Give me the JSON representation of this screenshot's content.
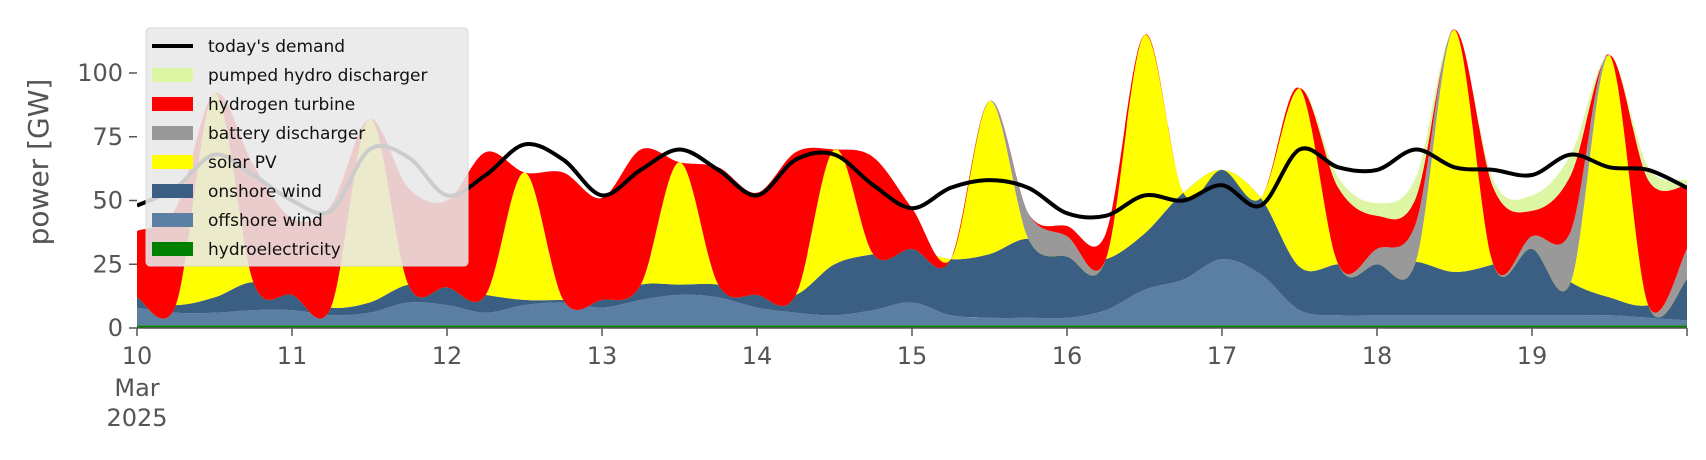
{
  "chart_data": {
    "type": "area",
    "title": "",
    "xlabel": "",
    "ylabel": "power [GW]",
    "ylim": [
      0,
      120
    ],
    "xlim": [
      "2025-03-10",
      "2025-03-20"
    ],
    "y_ticks": [
      0,
      25,
      50,
      75,
      100
    ],
    "x_tick_labels": [
      "10",
      "11",
      "12",
      "13",
      "14",
      "15",
      "16",
      "17",
      "18",
      "19"
    ],
    "x_date_label": {
      "month": "Mar",
      "year": "2025"
    },
    "grid": false,
    "legend_position": "top-left",
    "x": [
      "2025-03-10T00:00",
      "2025-03-10T06:00",
      "2025-03-10T12:00",
      "2025-03-10T18:00",
      "2025-03-11T00:00",
      "2025-03-11T06:00",
      "2025-03-11T12:00",
      "2025-03-11T18:00",
      "2025-03-12T00:00",
      "2025-03-12T06:00",
      "2025-03-12T12:00",
      "2025-03-12T18:00",
      "2025-03-13T00:00",
      "2025-03-13T06:00",
      "2025-03-13T12:00",
      "2025-03-13T18:00",
      "2025-03-14T00:00",
      "2025-03-14T06:00",
      "2025-03-14T12:00",
      "2025-03-14T18:00",
      "2025-03-15T00:00",
      "2025-03-15T06:00",
      "2025-03-15T12:00",
      "2025-03-15T18:00",
      "2025-03-16T00:00",
      "2025-03-16T06:00",
      "2025-03-16T12:00",
      "2025-03-16T18:00",
      "2025-03-17T00:00",
      "2025-03-17T06:00",
      "2025-03-17T12:00",
      "2025-03-17T18:00",
      "2025-03-18T00:00",
      "2025-03-18T06:00",
      "2025-03-18T12:00",
      "2025-03-18T18:00",
      "2025-03-19T00:00",
      "2025-03-19T06:00",
      "2025-03-19T12:00",
      "2025-03-19T18:00",
      "2025-03-20T00:00"
    ],
    "series": [
      {
        "name": "hydroelectricity",
        "color": "#008000",
        "values": [
          1,
          1,
          1,
          1,
          1,
          1,
          1,
          1,
          1,
          1,
          1,
          1,
          1,
          1,
          1,
          1,
          1,
          1,
          1,
          1,
          1,
          1,
          1,
          1,
          1,
          1,
          1,
          1,
          1,
          1,
          1,
          1,
          1,
          1,
          1,
          1,
          1,
          1,
          1,
          1,
          1
        ]
      },
      {
        "name": "offshore wind",
        "color": "#5b7fa3",
        "values": [
          7,
          5,
          5,
          6,
          6,
          4,
          5,
          9,
          8,
          5,
          8,
          9,
          7,
          10,
          12,
          11,
          7,
          5,
          4,
          6,
          9,
          4,
          3,
          3,
          3,
          6,
          14,
          18,
          26,
          20,
          6,
          4,
          4,
          4,
          4,
          4,
          4,
          4,
          4,
          3,
          2
        ]
      },
      {
        "name": "onshore wind",
        "color": "#3b5f82",
        "values": [
          4,
          3,
          6,
          11,
          6,
          3,
          4,
          7,
          7,
          7,
          2,
          1,
          3,
          6,
          4,
          5,
          5,
          7,
          20,
          22,
          21,
          22,
          25,
          31,
          24,
          20,
          22,
          34,
          35,
          30,
          17,
          20,
          20,
          21,
          17,
          20,
          26,
          13,
          7,
          5,
          16
        ]
      },
      {
        "name": "solar PV",
        "color": "#ffff00",
        "values": [
          0,
          0,
          80,
          0,
          0,
          0,
          72,
          0,
          0,
          0,
          50,
          0,
          0,
          0,
          48,
          0,
          0,
          0,
          45,
          0,
          0,
          0,
          60,
          0,
          0,
          0,
          78,
          0,
          0,
          0,
          70,
          0,
          0,
          0,
          95,
          0,
          0,
          0,
          95,
          0,
          0
        ]
      },
      {
        "name": "battery discharger",
        "color": "#999999",
        "values": [
          0,
          0,
          0,
          0,
          0,
          0,
          0,
          0,
          0,
          0,
          0,
          0,
          0,
          0,
          0,
          0,
          0,
          0,
          0,
          0,
          0,
          0,
          0,
          10,
          8,
          0,
          0,
          0,
          0,
          0,
          0,
          0,
          6,
          15,
          0,
          0,
          5,
          20,
          0,
          0,
          12
        ]
      },
      {
        "name": "hydrogen turbine",
        "color": "#ff0000",
        "values": [
          26,
          38,
          0,
          46,
          30,
          40,
          0,
          38,
          34,
          56,
          0,
          50,
          40,
          53,
          0,
          46,
          40,
          56,
          0,
          38,
          16,
          0,
          0,
          0,
          4,
          10,
          0,
          0,
          0,
          0,
          0,
          30,
          13,
          10,
          0,
          30,
          10,
          22,
          0,
          49,
          25
        ]
      },
      {
        "name": "pumped hydro discharger",
        "color": "#dcf6a4",
        "values": [
          0,
          0,
          0,
          0,
          0,
          0,
          0,
          0,
          0,
          0,
          0,
          0,
          0,
          0,
          0,
          0,
          0,
          0,
          0,
          0,
          0,
          0,
          0,
          0,
          0,
          0,
          0,
          0,
          0,
          0,
          0,
          4,
          5,
          8,
          0,
          3,
          6,
          8,
          0,
          5,
          2
        ]
      }
    ],
    "demand": {
      "name": "today's demand",
      "color": "#000000",
      "values": [
        48,
        55,
        68,
        60,
        50,
        46,
        70,
        67,
        52,
        60,
        72,
        66,
        52,
        62,
        70,
        62,
        52,
        66,
        68,
        56,
        47,
        55,
        58,
        55,
        45,
        44,
        52,
        50,
        56,
        48,
        70,
        63,
        62,
        70,
        63,
        62,
        60,
        68,
        63,
        62,
        55
      ]
    }
  }
}
